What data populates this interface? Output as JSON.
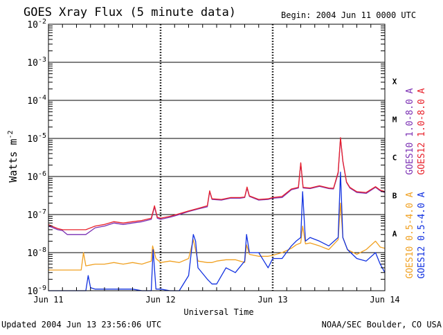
{
  "chart_data": {
    "type": "line",
    "title": "GOES Xray Flux (5 minute data)",
    "begin_label": "Begin:  2004 Jun 11 0000 UTC",
    "ylabel": "Watts m",
    "ylabel_sup": "-2",
    "xlabel": "Universal Time",
    "yscale": "log",
    "ylim": [
      1e-09,
      0.01
    ],
    "xlim": [
      0,
      72
    ],
    "x_unit": "hours since 2004 Jun 11 0000 UTC",
    "grid": true,
    "y_ticks": [
      {
        "base": "10",
        "exp": "-9"
      },
      {
        "base": "10",
        "exp": "-8"
      },
      {
        "base": "10",
        "exp": "-7"
      },
      {
        "base": "10",
        "exp": "-6"
      },
      {
        "base": "10",
        "exp": "-5"
      },
      {
        "base": "10",
        "exp": "-4"
      },
      {
        "base": "10",
        "exp": "-3"
      },
      {
        "base": "10",
        "exp": "-2"
      }
    ],
    "x_ticks": [
      {
        "label": "Jun 11",
        "x": 0
      },
      {
        "label": "Jun 12",
        "x": 24
      },
      {
        "label": "Jun 13",
        "x": 48
      },
      {
        "label": "Jun 14",
        "x": 72
      }
    ],
    "flare_classes": [
      {
        "label": "X",
        "level": 0.0001
      },
      {
        "label": "M",
        "level": 1e-05
      },
      {
        "label": "C",
        "level": 1e-06
      },
      {
        "label": "B",
        "level": 1e-07
      },
      {
        "label": "A",
        "level": 1e-08
      }
    ],
    "legend": [
      {
        "name": "GOES10 1.0-8.0 A",
        "color": "#7a2fb3"
      },
      {
        "name": "GOES12 1.0-8.0 A",
        "color": "#e8202a"
      },
      {
        "name": "GOES10 0.5-4.0 A",
        "color": "#f0a020"
      },
      {
        "name": "GOES12 0.5-4.0 A",
        "color": "#1030e0"
      }
    ],
    "series": [
      {
        "name": "GOES10 1.0-8.0 A",
        "color": "#7a2fb3",
        "x": [
          0,
          1,
          2,
          3,
          4,
          6,
          8,
          10,
          12,
          14,
          16,
          18,
          20,
          22,
          22.7,
          23.3,
          24,
          26,
          28,
          30,
          32,
          34,
          34.5,
          35,
          37,
          39,
          41,
          42,
          42.5,
          43,
          45,
          47,
          48,
          50,
          52,
          53.5,
          54,
          54.5,
          56,
          58,
          60,
          61,
          62,
          62.5,
          63,
          63.8,
          64.5,
          66,
          68,
          70,
          71,
          72
        ],
        "y": [
          5e-08,
          4.5e-08,
          4e-08,
          3.8e-08,
          3e-08,
          3e-08,
          3e-08,
          4.5e-08,
          5e-08,
          6e-08,
          5.5e-08,
          6e-08,
          6.5e-08,
          7.5e-08,
          1.6e-07,
          8e-08,
          7.5e-08,
          8.5e-08,
          1e-07,
          1.2e-07,
          1.4e-07,
          1.6e-07,
          4e-07,
          2.5e-07,
          2.4e-07,
          2.7e-07,
          2.7e-07,
          2.8e-07,
          5e-07,
          3e-07,
          2.4e-07,
          2.5e-07,
          2.7e-07,
          2.8e-07,
          4.5e-07,
          5e-07,
          2.2e-06,
          5e-07,
          4.8e-07,
          5.5e-07,
          4.8e-07,
          4.7e-07,
          1.2e-06,
          1e-05,
          2.5e-06,
          7e-07,
          5e-07,
          3.8e-07,
          3.6e-07,
          5.2e-07,
          4.2e-07,
          3.8e-07
        ]
      },
      {
        "name": "GOES12 1.0-8.0 A",
        "color": "#e8202a",
        "x": [
          0,
          1,
          2,
          3,
          4,
          6,
          8,
          10,
          12,
          14,
          16,
          18,
          20,
          22,
          22.7,
          23.3,
          24,
          26,
          28,
          30,
          32,
          34,
          34.5,
          35,
          37,
          39,
          41,
          42,
          42.5,
          43,
          45,
          47,
          48,
          50,
          52,
          53.5,
          54,
          54.5,
          56,
          58,
          60,
          61,
          62,
          62.5,
          63,
          63.8,
          64.5,
          66,
          68,
          70,
          71,
          72
        ],
        "y": [
          5.5e-08,
          4.8e-08,
          4.3e-08,
          4e-08,
          4e-08,
          4e-08,
          4e-08,
          5e-08,
          5.5e-08,
          6.5e-08,
          6e-08,
          6.5e-08,
          7e-08,
          8e-08,
          1.7e-07,
          8.5e-08,
          8e-08,
          9e-08,
          1.05e-07,
          1.25e-07,
          1.45e-07,
          1.7e-07,
          4.2e-07,
          2.6e-07,
          2.5e-07,
          2.8e-07,
          2.8e-07,
          2.9e-07,
          5.3e-07,
          3.1e-07,
          2.5e-07,
          2.6e-07,
          2.8e-07,
          3e-07,
          4.7e-07,
          5.2e-07,
          2.3e-06,
          5.2e-07,
          5e-07,
          5.7e-07,
          5e-07,
          4.9e-07,
          1.3e-06,
          1.05e-05,
          2.6e-06,
          7.2e-07,
          5.2e-07,
          4e-07,
          3.8e-07,
          5.4e-07,
          4.4e-07,
          4e-07
        ]
      },
      {
        "name": "GOES10 0.5-4.0 A",
        "color": "#f0a020",
        "x": [
          0,
          3,
          6,
          7,
          7.5,
          8,
          10,
          12,
          14,
          16,
          18,
          20,
          22,
          22.3,
          23,
          24,
          26,
          28,
          30,
          31,
          32,
          34,
          35,
          36,
          38,
          40,
          42,
          42.4,
          43,
          45,
          47,
          48,
          50,
          52,
          53,
          54,
          54.4,
          55,
          56,
          58,
          60,
          62,
          62.5,
          63,
          64,
          66,
          68,
          70,
          71,
          72
        ],
        "y": [
          3.5e-09,
          3.5e-09,
          3.5e-09,
          3.5e-09,
          1e-08,
          4.5e-09,
          5e-09,
          5e-09,
          5.5e-09,
          5e-09,
          5.5e-09,
          5e-09,
          6e-09,
          1.5e-08,
          7e-09,
          5.5e-09,
          6e-09,
          5.5e-09,
          7e-09,
          2.2e-08,
          6e-09,
          5.5e-09,
          5.5e-09,
          6e-09,
          6.5e-09,
          6.5e-09,
          5.5e-09,
          1.6e-08,
          9e-09,
          8e-09,
          8e-09,
          8.5e-09,
          1e-08,
          1.3e-08,
          1.6e-08,
          1.8e-08,
          5e-08,
          1.7e-08,
          1.8e-08,
          1.5e-08,
          1.2e-08,
          2.2e-08,
          2e-07,
          2.5e-08,
          1.2e-08,
          9e-09,
          1.2e-08,
          2e-08,
          1.4e-08,
          1.3e-08
        ]
      },
      {
        "name": "GOES12 0.5-4.0 A",
        "color": "#1030e0",
        "x": [
          0,
          8,
          8.5,
          9,
          10,
          12,
          14,
          16,
          18,
          20,
          22,
          22.4,
          23,
          24,
          26,
          28,
          30,
          31,
          31.5,
          32,
          34,
          35,
          36,
          38,
          40,
          42,
          42.4,
          43,
          45,
          47,
          48,
          50,
          52,
          53,
          54,
          54.4,
          55,
          56,
          58,
          60,
          62,
          62.5,
          63,
          64,
          66,
          68,
          70,
          71,
          72
        ],
        "y": [
          1e-09,
          1e-09,
          2.5e-09,
          1.2e-09,
          1.1e-09,
          1.1e-09,
          1.1e-09,
          1.1e-09,
          1.1e-09,
          1e-09,
          1e-09,
          1.2e-08,
          1.1e-09,
          1.1e-09,
          1e-09,
          1e-09,
          2.5e-09,
          3e-08,
          2e-08,
          4e-09,
          2e-09,
          1.5e-09,
          1.5e-09,
          4e-09,
          3e-09,
          6e-09,
          3e-08,
          1e-08,
          1e-08,
          4e-09,
          7e-09,
          7e-09,
          1.5e-08,
          2e-08,
          2.5e-08,
          4e-07,
          2e-08,
          2.5e-08,
          2e-08,
          1.5e-08,
          2.5e-08,
          1.3e-06,
          2.5e-08,
          1.2e-08,
          7e-09,
          6e-09,
          1e-08,
          5e-09,
          3e-09
        ]
      }
    ]
  },
  "footer": {
    "updated": "Updated 2004 Jun 13 23:56:06 UTC",
    "credit": "NOAA/SEC Boulder, CO USA"
  }
}
